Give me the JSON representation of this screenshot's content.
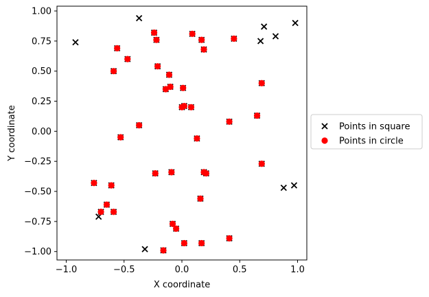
{
  "chart_data": {
    "type": "scatter",
    "xlabel": "X coordinate",
    "ylabel": "Y coordinate",
    "xlim": [
      -1.08,
      1.08
    ],
    "ylim": [
      -1.07,
      1.04
    ],
    "xticks": [
      -1.0,
      -0.5,
      0.0,
      0.5,
      1.0
    ],
    "xtick_labels": [
      "−1.0",
      "−0.5",
      "0.0",
      "0.5",
      "1.0"
    ],
    "yticks": [
      -1.0,
      -0.75,
      -0.5,
      -0.25,
      0.0,
      0.25,
      0.5,
      0.75,
      1.0
    ],
    "ytick_labels": [
      "−1.00",
      "−0.75",
      "−0.50",
      "−0.25",
      "0.00",
      "0.25",
      "0.50",
      "0.75",
      "1.00"
    ],
    "grid": false,
    "legend_position": "outside-right",
    "series": [
      {
        "name": "Points in square",
        "marker": "x",
        "color": "#000000",
        "points": [
          [
            -0.92,
            0.74
          ],
          [
            -0.37,
            0.94
          ],
          [
            0.71,
            0.87
          ],
          [
            0.98,
            0.9
          ],
          [
            0.81,
            0.79
          ],
          [
            0.68,
            0.75
          ],
          [
            -0.72,
            -0.71
          ],
          [
            -0.32,
            -0.98
          ],
          [
            0.88,
            -0.47
          ],
          [
            0.97,
            -0.45
          ],
          [
            -0.24,
            0.82
          ],
          [
            -0.22,
            0.76
          ],
          [
            0.09,
            0.81
          ],
          [
            0.17,
            0.76
          ],
          [
            0.19,
            0.68
          ],
          [
            0.45,
            0.77
          ],
          [
            -0.56,
            0.69
          ],
          [
            -0.47,
            0.6
          ],
          [
            -0.59,
            0.5
          ],
          [
            -0.21,
            0.54
          ],
          [
            -0.11,
            0.47
          ],
          [
            -0.1,
            0.37
          ],
          [
            -0.14,
            0.35
          ],
          [
            0.01,
            0.36
          ],
          [
            0.02,
            0.21
          ],
          [
            0.0,
            0.2
          ],
          [
            0.08,
            0.2
          ],
          [
            0.69,
            0.4
          ],
          [
            0.41,
            0.08
          ],
          [
            0.65,
            0.13
          ],
          [
            -0.37,
            0.05
          ],
          [
            -0.53,
            -0.05
          ],
          [
            0.13,
            -0.06
          ],
          [
            -0.23,
            -0.35
          ],
          [
            -0.09,
            -0.34
          ],
          [
            0.19,
            -0.34
          ],
          [
            0.21,
            -0.35
          ],
          [
            0.69,
            -0.27
          ],
          [
            0.16,
            -0.56
          ],
          [
            -0.76,
            -0.43
          ],
          [
            -0.61,
            -0.45
          ],
          [
            -0.65,
            -0.61
          ],
          [
            -0.7,
            -0.67
          ],
          [
            -0.59,
            -0.67
          ],
          [
            -0.08,
            -0.77
          ],
          [
            -0.05,
            -0.81
          ],
          [
            0.02,
            -0.93
          ],
          [
            0.17,
            -0.93
          ],
          [
            -0.16,
            -0.99
          ],
          [
            0.41,
            -0.89
          ]
        ]
      },
      {
        "name": "Points in circle",
        "marker": "o",
        "color": "#ff0000",
        "points": [
          [
            -0.24,
            0.82
          ],
          [
            -0.22,
            0.76
          ],
          [
            0.09,
            0.81
          ],
          [
            0.17,
            0.76
          ],
          [
            0.19,
            0.68
          ],
          [
            0.45,
            0.77
          ],
          [
            -0.56,
            0.69
          ],
          [
            -0.47,
            0.6
          ],
          [
            -0.59,
            0.5
          ],
          [
            -0.21,
            0.54
          ],
          [
            -0.11,
            0.47
          ],
          [
            -0.1,
            0.37
          ],
          [
            -0.14,
            0.35
          ],
          [
            0.01,
            0.36
          ],
          [
            0.02,
            0.21
          ],
          [
            0.0,
            0.2
          ],
          [
            0.08,
            0.2
          ],
          [
            0.69,
            0.4
          ],
          [
            0.41,
            0.08
          ],
          [
            0.65,
            0.13
          ],
          [
            -0.37,
            0.05
          ],
          [
            -0.53,
            -0.05
          ],
          [
            0.13,
            -0.06
          ],
          [
            -0.23,
            -0.35
          ],
          [
            -0.09,
            -0.34
          ],
          [
            0.19,
            -0.34
          ],
          [
            0.21,
            -0.35
          ],
          [
            0.69,
            -0.27
          ],
          [
            0.16,
            -0.56
          ],
          [
            -0.76,
            -0.43
          ],
          [
            -0.61,
            -0.45
          ],
          [
            -0.65,
            -0.61
          ],
          [
            -0.7,
            -0.67
          ],
          [
            -0.59,
            -0.67
          ],
          [
            -0.08,
            -0.77
          ],
          [
            -0.05,
            -0.81
          ],
          [
            0.02,
            -0.93
          ],
          [
            0.17,
            -0.93
          ],
          [
            -0.16,
            -0.99
          ],
          [
            0.41,
            -0.89
          ]
        ]
      }
    ]
  }
}
